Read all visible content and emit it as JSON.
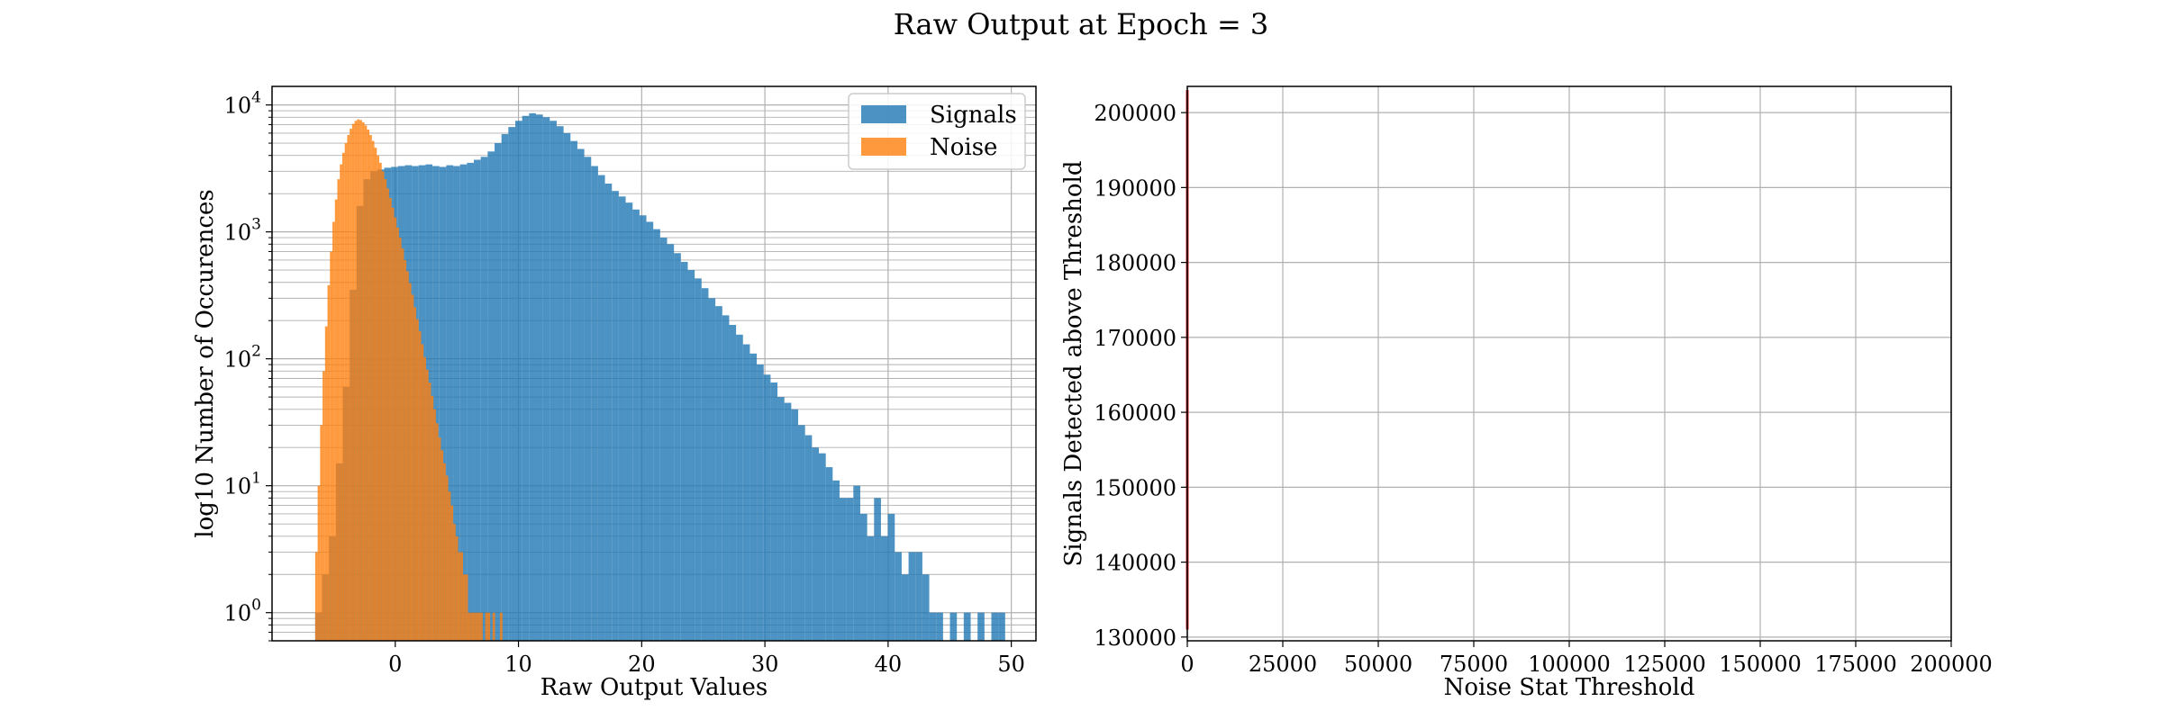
{
  "figure": {
    "title": "Raw Output at Epoch = 3"
  },
  "chart_data": [
    {
      "type": "bar",
      "subtype": "histogram",
      "xlabel": "Raw Output Values",
      "ylabel": "log10 Number of Occurences",
      "y_scale": "log",
      "xlim": [
        -10,
        52
      ],
      "ylim": [
        0.6,
        14000
      ],
      "x_ticks": [
        0,
        10,
        20,
        30,
        40,
        50
      ],
      "y_ticks": [
        {
          "value": 1,
          "base": "10",
          "exp": "0"
        },
        {
          "value": 10,
          "base": "10",
          "exp": "1"
        },
        {
          "value": 100,
          "base": "10",
          "exp": "2"
        },
        {
          "value": 1000,
          "base": "10",
          "exp": "3"
        },
        {
          "value": 10000,
          "base": "10",
          "exp": "4"
        }
      ],
      "grid": true,
      "legend_position": "top-right",
      "series": [
        {
          "name": "Signals",
          "color": "#1f77b4",
          "opacity": 0.8,
          "bin_start": -6.5,
          "bin_width": 0.56,
          "counts": [
            1,
            2,
            4,
            15,
            60,
            350,
            1600,
            2600,
            3000,
            3100,
            3200,
            3250,
            3300,
            3350,
            3300,
            3350,
            3400,
            3300,
            3250,
            3350,
            3300,
            3400,
            3500,
            3700,
            3900,
            4300,
            5000,
            5900,
            6700,
            7500,
            8200,
            8600,
            8400,
            8000,
            7500,
            6800,
            6000,
            5200,
            4500,
            3900,
            3300,
            2800,
            2400,
            2100,
            1900,
            1700,
            1500,
            1350,
            1200,
            1050,
            900,
            800,
            680,
            580,
            500,
            430,
            360,
            300,
            260,
            220,
            185,
            155,
            130,
            110,
            90,
            75,
            65,
            50,
            45,
            40,
            30,
            25,
            20,
            18,
            14,
            11,
            8,
            8,
            10,
            6,
            4,
            8,
            4,
            6,
            3,
            2,
            3,
            3,
            2,
            1,
            1,
            0,
            1,
            0,
            1,
            0,
            1,
            0,
            1,
            1
          ]
        },
        {
          "name": "Noise",
          "color": "#ff7f0e",
          "opacity": 0.8,
          "bin_start": -6.5,
          "bin_width": 0.2,
          "counts": [
            3,
            10,
            30,
            80,
            180,
            380,
            700,
            1200,
            1800,
            2600,
            3400,
            4200,
            5000,
            5800,
            6500,
            7100,
            7500,
            7700,
            7600,
            7300,
            6900,
            6400,
            5800,
            5200,
            4600,
            4000,
            3500,
            3000,
            2600,
            2200,
            1850,
            1550,
            1300,
            1080,
            900,
            740,
            600,
            490,
            395,
            320,
            255,
            205,
            165,
            130,
            103,
            82,
            65,
            51,
            40,
            31,
            24,
            19,
            15,
            12,
            9,
            7,
            5,
            4,
            3,
            3,
            2,
            2,
            1,
            1,
            1,
            1,
            1,
            1,
            0,
            1,
            1,
            0,
            1,
            0,
            0,
            1
          ]
        }
      ]
    },
    {
      "type": "line",
      "xlabel": "Noise Stat Threshold",
      "ylabel": "Signals Detected above Threshold",
      "xlim": [
        0,
        200000
      ],
      "ylim": [
        129500,
        203500
      ],
      "x_ticks": [
        0,
        25000,
        50000,
        75000,
        100000,
        125000,
        150000,
        175000,
        200000
      ],
      "y_ticks": [
        130000,
        140000,
        150000,
        160000,
        170000,
        180000,
        190000,
        200000
      ],
      "grid": true,
      "series": [
        {
          "color": "#d62728",
          "x": [
            0,
            0,
            0
          ],
          "y": [
            131000,
            170000,
            203000
          ]
        }
      ]
    }
  ]
}
